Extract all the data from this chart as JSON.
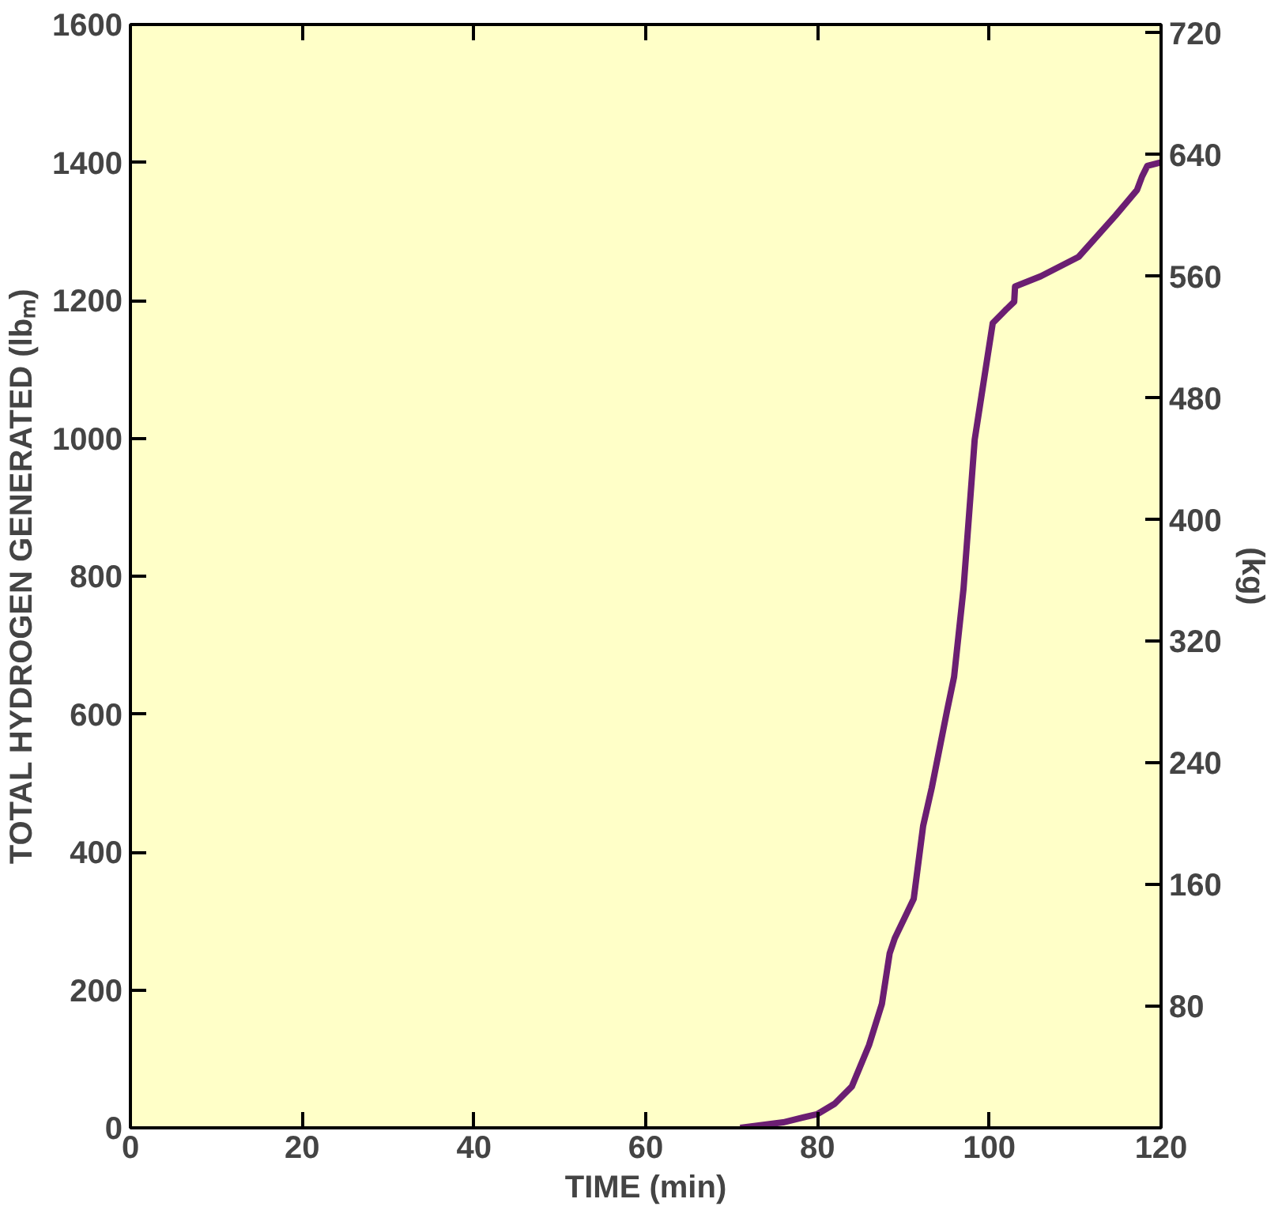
{
  "chart_data": {
    "type": "line",
    "xlabel": "TIME (min)",
    "ylabel": "TOTAL HYDROGEN GENERATED (lbₘ)",
    "y2label": "(kg)",
    "xlim": [
      0,
      120
    ],
    "xticks": [
      0,
      20,
      40,
      60,
      80,
      100,
      120
    ],
    "ylim": [
      0,
      1600
    ],
    "yticks": [
      0,
      200,
      400,
      600,
      800,
      1000,
      1200,
      1400,
      1600
    ],
    "y2lim": [
      0,
      725.7
    ],
    "y2ticks": [
      80,
      160,
      240,
      320,
      400,
      480,
      560,
      640,
      720
    ],
    "grid": false,
    "series": [
      {
        "color": "#6b1e72",
        "x": [
          71,
          76,
          80,
          82,
          84,
          86,
          87.5,
          88.4,
          89,
          91.2,
          92.3,
          93.3,
          95.1,
          95.9,
          97.0,
          98.3,
          100.4,
          101.9,
          102.9,
          103.0,
          106,
          110.4,
          114.7,
          117.2,
          117.8,
          118.4,
          120
        ],
        "values": [
          0,
          8,
          20,
          35,
          60,
          120,
          180,
          253,
          275,
          332,
          438,
          493,
          606,
          654,
          782,
          998,
          1167,
          1186,
          1198,
          1220,
          1235,
          1263,
          1323,
          1360,
          1380,
          1395,
          1400
        ]
      }
    ]
  }
}
